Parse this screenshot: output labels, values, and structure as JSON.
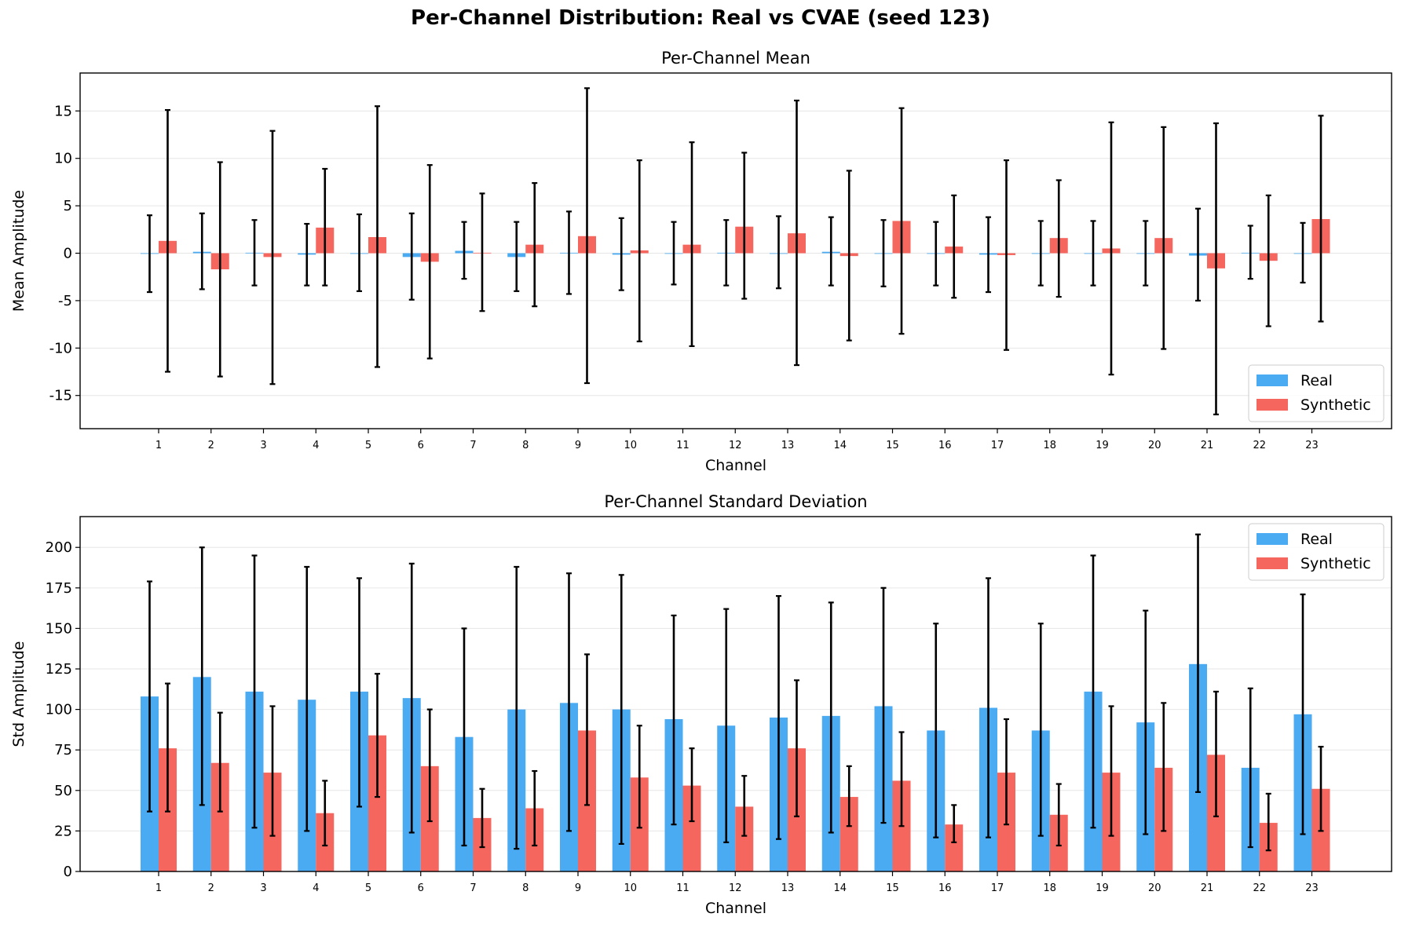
{
  "suptitle": "Per-Channel Distribution: Real vs CVAE (seed 123)",
  "colors": {
    "real": "#4aaaf2",
    "synthetic": "#f5675e",
    "errorbar": "#000000",
    "grid": "#e6e6e6"
  },
  "chart_data": [
    {
      "type": "bar",
      "title": "Per-Channel Mean",
      "xlabel": "Channel",
      "ylabel": "Mean Amplitude",
      "ylim": [
        -18.5,
        19
      ],
      "yticks": [
        -15,
        -10,
        -5,
        0,
        5,
        10,
        15
      ],
      "grid": true,
      "legend_position": "lower right",
      "categories": [
        "1",
        "2",
        "3",
        "4",
        "5",
        "6",
        "7",
        "8",
        "9",
        "10",
        "11",
        "12",
        "13",
        "14",
        "15",
        "16",
        "17",
        "18",
        "19",
        "20",
        "21",
        "22",
        "23"
      ],
      "series": [
        {
          "name": "Real",
          "values": [
            -0.05,
            0.15,
            0.05,
            -0.15,
            0.0,
            -0.4,
            0.25,
            -0.4,
            0.05,
            -0.15,
            -0.05,
            0.05,
            0.0,
            0.15,
            0.0,
            -0.05,
            -0.15,
            0.0,
            0.0,
            0.0,
            -0.25,
            0.05,
            0.0
          ],
          "err_low": [
            -4.1,
            -3.8,
            -3.4,
            -3.4,
            -4.0,
            -4.9,
            -2.7,
            -4.0,
            -4.3,
            -3.9,
            -3.3,
            -3.4,
            -3.7,
            -3.4,
            -3.5,
            -3.4,
            -4.1,
            -3.4,
            -3.4,
            -3.4,
            -5.0,
            -2.7,
            -3.1
          ],
          "err_high": [
            4.0,
            4.2,
            3.5,
            3.1,
            4.1,
            4.2,
            3.3,
            3.3,
            4.4,
            3.7,
            3.3,
            3.5,
            3.9,
            3.8,
            3.5,
            3.3,
            3.8,
            3.4,
            3.4,
            3.4,
            4.7,
            2.9,
            3.2
          ]
        },
        {
          "name": "Synthetic",
          "values": [
            1.3,
            -1.7,
            -0.4,
            2.7,
            1.7,
            -0.9,
            0.05,
            0.9,
            1.8,
            0.3,
            0.9,
            2.8,
            2.1,
            -0.3,
            3.4,
            0.7,
            -0.2,
            1.6,
            0.5,
            1.6,
            -1.6,
            -0.8,
            3.6
          ],
          "err_low": [
            -12.5,
            -13.0,
            -13.8,
            -3.4,
            -12.0,
            -11.1,
            -6.1,
            -5.6,
            -13.7,
            -9.3,
            -9.8,
            -4.8,
            -11.8,
            -9.2,
            -8.5,
            -4.7,
            -10.2,
            -4.6,
            -12.8,
            -10.1,
            -17.0,
            -7.7,
            -7.2
          ],
          "err_high": [
            15.1,
            9.6,
            12.9,
            8.9,
            15.5,
            9.3,
            6.3,
            7.4,
            17.4,
            9.8,
            11.7,
            10.6,
            16.1,
            8.7,
            15.3,
            6.1,
            9.8,
            7.7,
            13.8,
            13.3,
            13.7,
            6.1,
            14.5
          ]
        }
      ]
    },
    {
      "type": "bar",
      "title": "Per-Channel Standard Deviation",
      "xlabel": "Channel",
      "ylabel": "Std Amplitude",
      "ylim": [
        0,
        219
      ],
      "yticks": [
        0,
        25,
        50,
        75,
        100,
        125,
        150,
        175,
        200
      ],
      "grid": true,
      "legend_position": "upper right",
      "categories": [
        "1",
        "2",
        "3",
        "4",
        "5",
        "6",
        "7",
        "8",
        "9",
        "10",
        "11",
        "12",
        "13",
        "14",
        "15",
        "16",
        "17",
        "18",
        "19",
        "20",
        "21",
        "22",
        "23"
      ],
      "series": [
        {
          "name": "Real",
          "values": [
            108,
            120,
            111,
            106,
            111,
            107,
            83,
            100,
            104,
            100,
            94,
            90,
            95,
            96,
            102,
            87,
            101,
            87,
            111,
            92,
            128,
            64,
            97
          ],
          "err_low": [
            37,
            41,
            27,
            25,
            40,
            24,
            16,
            14,
            25,
            17,
            29,
            18,
            20,
            24,
            30,
            21,
            21,
            22,
            27,
            23,
            49,
            15,
            23
          ],
          "err_high": [
            179,
            200,
            195,
            188,
            181,
            190,
            150,
            188,
            184,
            183,
            158,
            162,
            170,
            166,
            175,
            153,
            181,
            153,
            195,
            161,
            208,
            113,
            171
          ]
        },
        {
          "name": "Synthetic",
          "values": [
            76,
            67,
            61,
            36,
            84,
            65,
            33,
            39,
            87,
            58,
            53,
            40,
            76,
            46,
            56,
            29,
            61,
            35,
            61,
            64,
            72,
            30,
            51
          ],
          "err_low": [
            37,
            37,
            22,
            16,
            46,
            31,
            15,
            16,
            41,
            27,
            31,
            22,
            34,
            28,
            28,
            18,
            29,
            16,
            22,
            25,
            34,
            13,
            25
          ],
          "err_high": [
            116,
            98,
            102,
            56,
            122,
            100,
            51,
            62,
            134,
            90,
            76,
            59,
            118,
            65,
            86,
            41,
            94,
            54,
            102,
            104,
            111,
            48,
            77
          ]
        }
      ]
    }
  ]
}
